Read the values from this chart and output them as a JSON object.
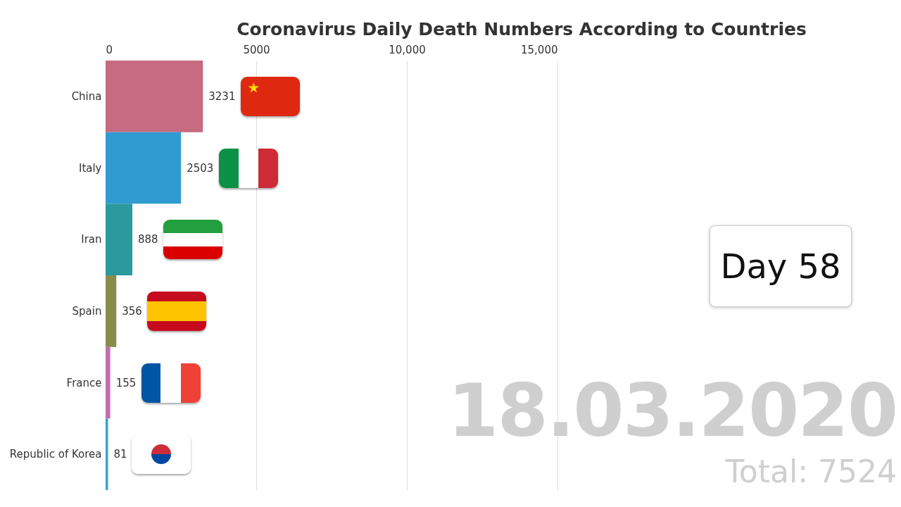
{
  "chart_data": {
    "type": "bar",
    "orientation": "horizontal",
    "title": "Coronavirus Daily Death Numbers According to Countries",
    "categories": [
      "China",
      "Italy",
      "Iran",
      "Spain",
      "France",
      "Republic of Korea"
    ],
    "values": [
      3231,
      2503,
      888,
      356,
      155,
      81
    ],
    "colors": [
      "#c66b80",
      "#2f9bd0",
      "#2a9a9e",
      "#888c4a",
      "#c06fb3",
      "#3aa0c8"
    ],
    "xlim": [
      0,
      15000
    ],
    "xticks": [
      0,
      5000,
      {
        "value": 10000,
        "label": "10,000"
      },
      {
        "value": 15000,
        "label": "15,000"
      }
    ],
    "grid": "x",
    "legend": false,
    "data_labels": true,
    "annotations": [
      "Day 58",
      "18.03.2020",
      "Total: 7524"
    ]
  }
}
